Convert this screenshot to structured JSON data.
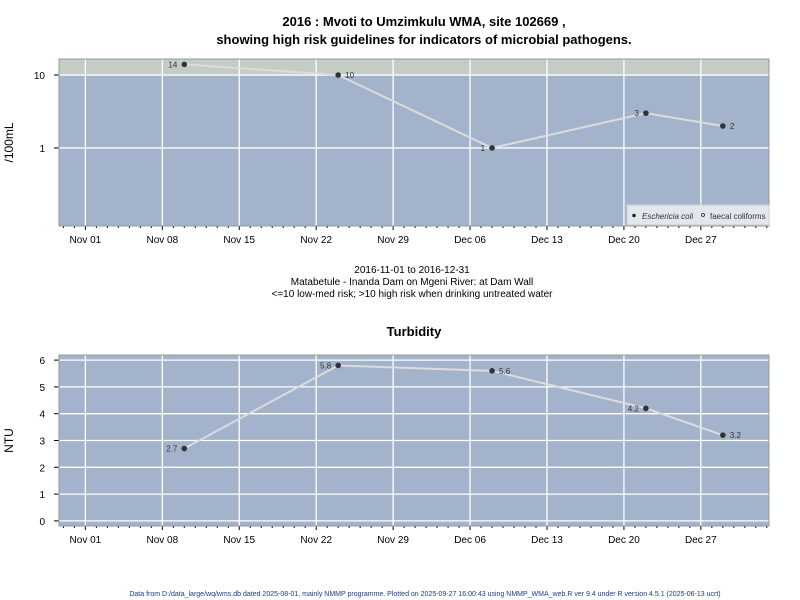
{
  "chart_data": [
    {
      "type": "line",
      "title_line1": "2016 : Mvoti to Umzimkulu WMA, site 102669 ,",
      "title_line2": "showing high risk guidelines for indicators of microbial pathogens.",
      "ylabel": "/100mL",
      "yscale": "log",
      "ylim": [
        0.085,
        16.6
      ],
      "yticks": [
        {
          "value": 1,
          "label": "1"
        },
        {
          "value": 10,
          "label": "10"
        }
      ],
      "xlim_days_from_nov01": [
        -2.4,
        62.2
      ],
      "xticks": [
        {
          "day": 0,
          "label": "Nov 01"
        },
        {
          "day": 7,
          "label": "Nov 08"
        },
        {
          "day": 14,
          "label": "Nov 15"
        },
        {
          "day": 21,
          "label": "Nov 22"
        },
        {
          "day": 28,
          "label": "Nov 29"
        },
        {
          "day": 35,
          "label": "Dec 06"
        },
        {
          "day": 42,
          "label": "Dec 13"
        },
        {
          "day": 49,
          "label": "Dec 20"
        },
        {
          "day": 56,
          "label": "Dec 27"
        }
      ],
      "high_risk_threshold": 10,
      "series": [
        {
          "name": "Eschericia coli",
          "points": [
            {
              "date": "2016-11-10",
              "day": 9,
              "value": 14,
              "label": "14",
              "label_side": "left"
            },
            {
              "date": "2016-11-24",
              "day": 23,
              "value": 10,
              "label": "10",
              "label_side": "right"
            },
            {
              "date": "2016-12-08",
              "day": 37,
              "value": 1,
              "label": "1",
              "label_side": "left"
            },
            {
              "date": "2016-12-22",
              "day": 51,
              "value": 3,
              "label": "3",
              "label_side": "left"
            },
            {
              "date": "2016-12-29",
              "day": 58,
              "value": 2,
              "label": "2",
              "label_side": "right"
            }
          ]
        },
        {
          "name": "faecal coliforms",
          "points": []
        }
      ],
      "legend": {
        "placement": "bottom-right",
        "entries": [
          "Eschericia coli",
          "faecal coliforms"
        ]
      },
      "grid": true
    },
    {
      "type": "line",
      "title": "Turbidity",
      "ylabel": "NTU",
      "ylim": [
        -0.19,
        6.19
      ],
      "yticks": [
        {
          "value": 0,
          "label": "0"
        },
        {
          "value": 1,
          "label": "1"
        },
        {
          "value": 2,
          "label": "2"
        },
        {
          "value": 3,
          "label": "3"
        },
        {
          "value": 4,
          "label": "4"
        },
        {
          "value": 5,
          "label": "5"
        },
        {
          "value": 6,
          "label": "6"
        }
      ],
      "xlim_days_from_nov01": [
        -2.4,
        62.2
      ],
      "xticks": [
        {
          "day": 0,
          "label": "Nov 01"
        },
        {
          "day": 7,
          "label": "Nov 08"
        },
        {
          "day": 14,
          "label": "Nov 15"
        },
        {
          "day": 21,
          "label": "Nov 22"
        },
        {
          "day": 28,
          "label": "Nov 29"
        },
        {
          "day": 35,
          "label": "Dec 06"
        },
        {
          "day": 42,
          "label": "Dec 13"
        },
        {
          "day": 49,
          "label": "Dec 20"
        },
        {
          "day": 56,
          "label": "Dec 27"
        }
      ],
      "series": [
        {
          "name": "Turbidity",
          "points": [
            {
              "date": "2016-11-10",
              "day": 9,
              "value": 2.7,
              "label": "2.7",
              "label_side": "left"
            },
            {
              "date": "2016-11-24",
              "day": 23,
              "value": 5.8,
              "label": "5.8",
              "label_side": "left"
            },
            {
              "date": "2016-12-08",
              "day": 37,
              "value": 5.6,
              "label": "5.6",
              "label_side": "right"
            },
            {
              "date": "2016-12-22",
              "day": 51,
              "value": 4.2,
              "label": "4.2",
              "label_side": "left"
            },
            {
              "date": "2016-12-29",
              "day": 58,
              "value": 3.2,
              "label": "3.2",
              "label_side": "right"
            }
          ]
        }
      ],
      "grid": true
    }
  ],
  "subtitle": {
    "date_range": "2016-11-01 to 2016-12-31",
    "site": "Matabetule - Inanda Dam on Mgeni River: at Dam Wall",
    "risk_note": "<=10 low-med risk; >10 high risk when drinking untreated water"
  },
  "footer": "Data from D:/data_large/wq/wms.db dated 2025-08-01, mainly NMMP programme. Plotted on 2025-09-27 16:00:43 using NMMP_WMA_web.R ver 9.4 under R version 4.5.1 (2025-06-13 ucrt)",
  "colors": {
    "panel": "#a3b3cb",
    "high_risk_band": "#c3cdc3",
    "line": "#dcdcdc",
    "point": "#333333",
    "grid": "#ffffff",
    "footer": "#1a3a8a"
  }
}
